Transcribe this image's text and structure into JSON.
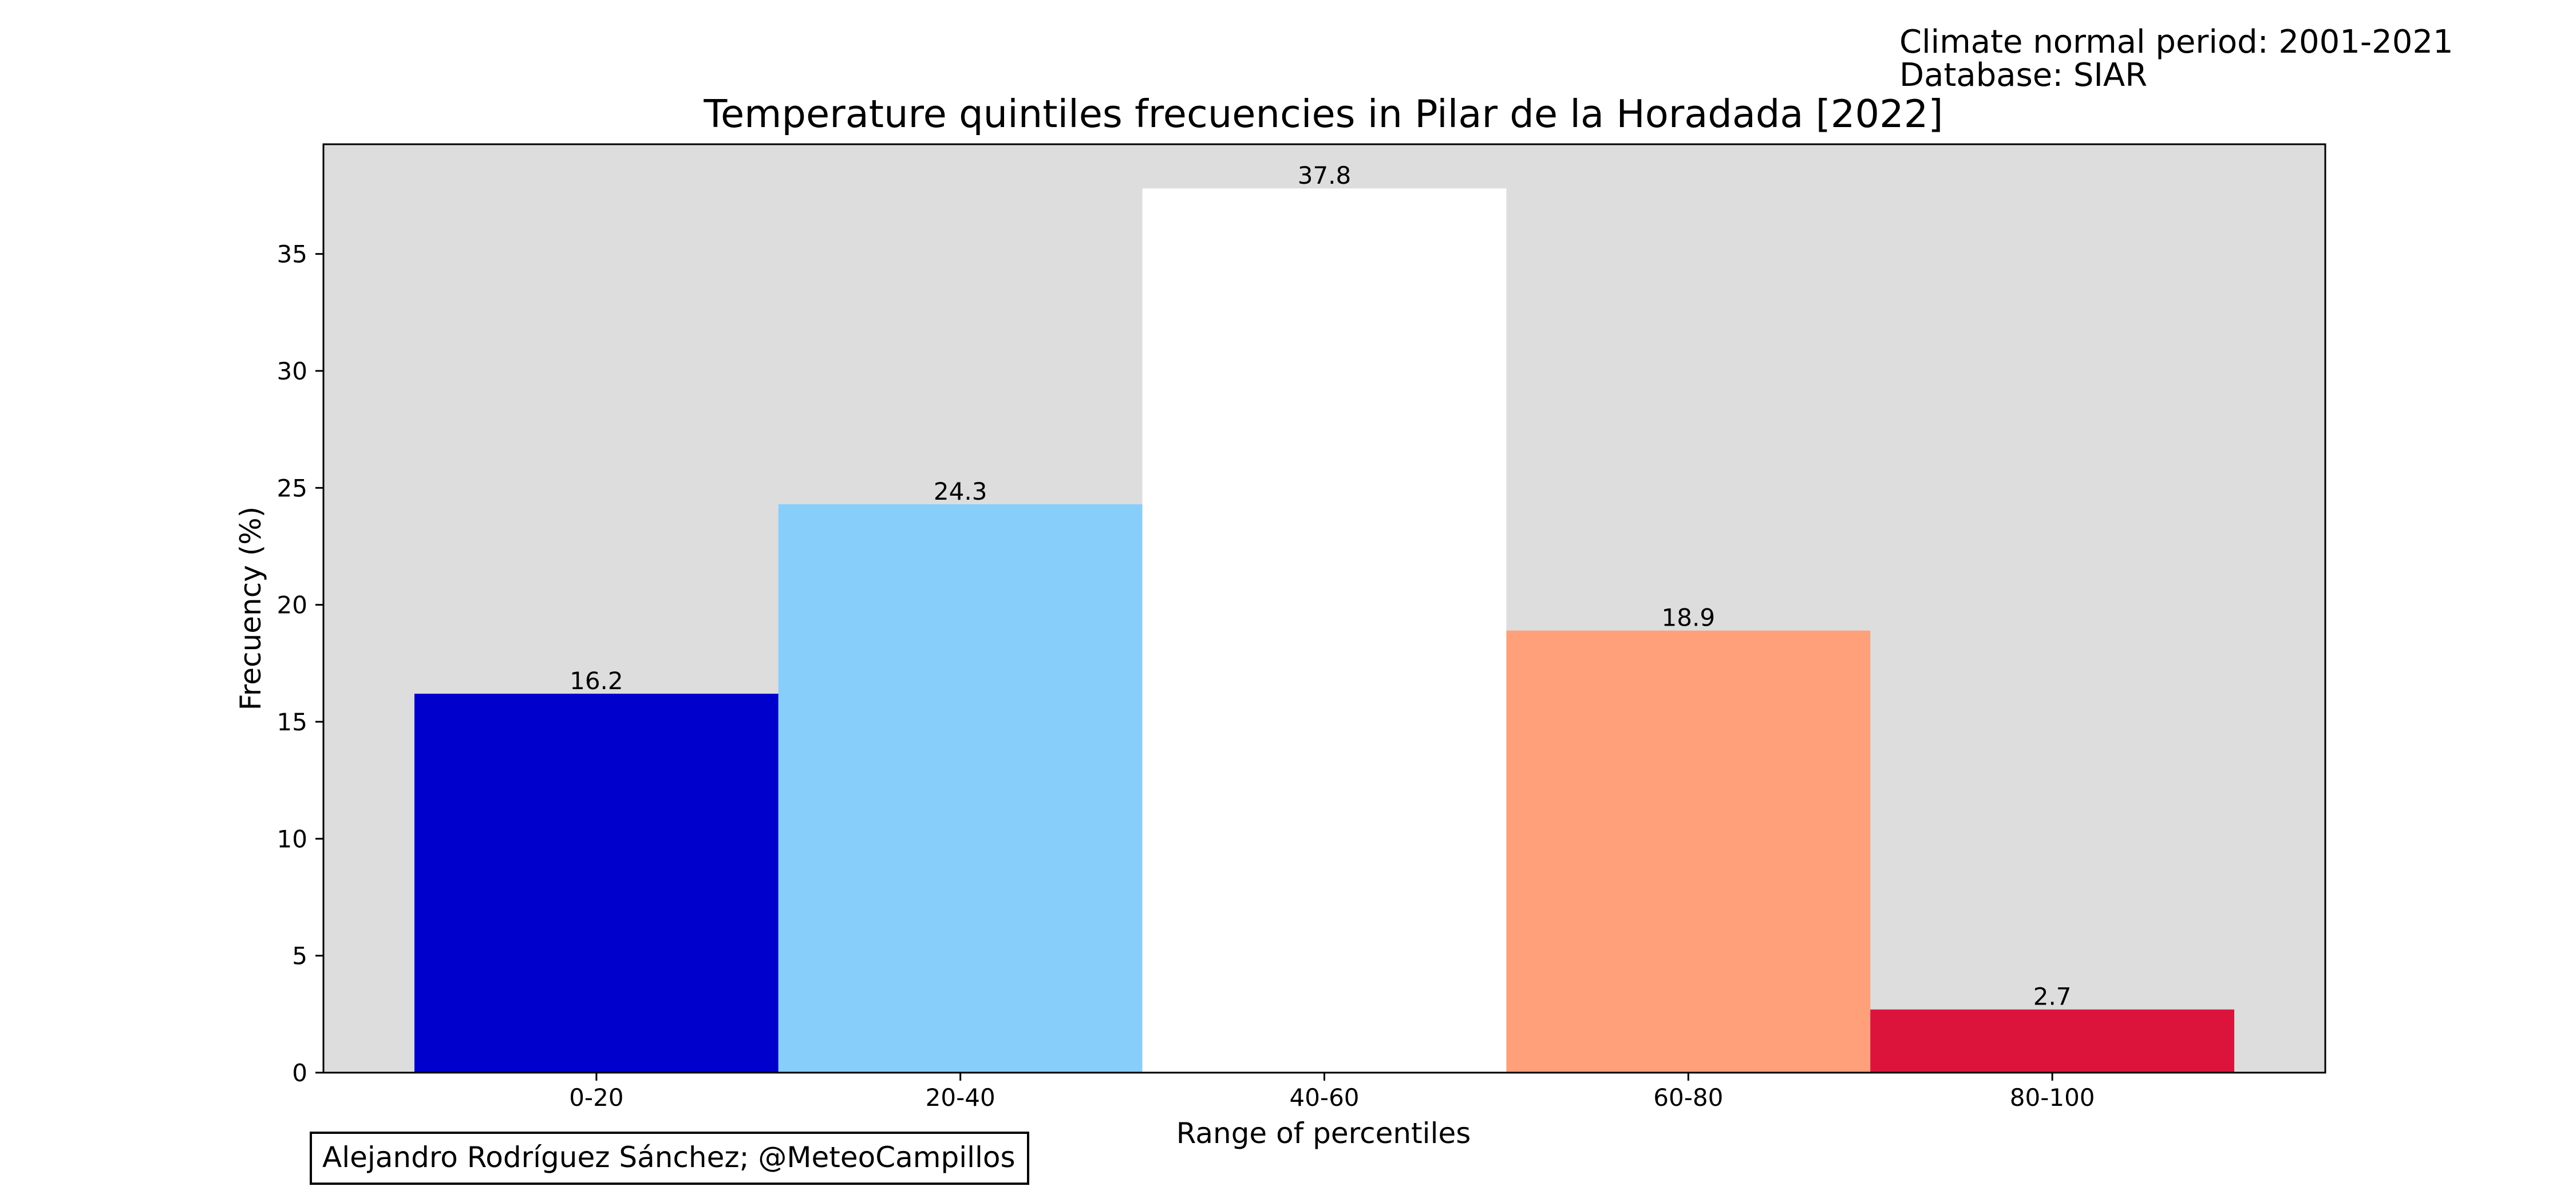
{
  "meta": {
    "climate_period": "Climate normal period: 2001-2021",
    "database": "Database: SIAR",
    "credit": "Alejandro Rodríguez Sánchez; @MeteoCampillos"
  },
  "chart_data": {
    "type": "bar",
    "title": "Temperature quintiles frecuencies in Pilar de la Horadada [2022]",
    "xlabel": "Range of percentiles",
    "ylabel": "Frecuency (%)",
    "categories": [
      "0-20",
      "20-40",
      "40-60",
      "60-80",
      "80-100"
    ],
    "values": [
      16.2,
      24.3,
      37.8,
      18.9,
      2.7
    ],
    "value_labels": [
      "16.2",
      "24.3",
      "37.8",
      "18.9",
      "2.7"
    ],
    "colors": [
      "#0000cd",
      "#87cefa",
      "#ffffff",
      "#ffa07a",
      "#dc143c"
    ],
    "ylim": [
      0,
      39.69
    ],
    "yticks": [
      0,
      5,
      10,
      15,
      20,
      25,
      30,
      35
    ],
    "plot_background": "#dddddd",
    "grid": false,
    "legend": "none"
  }
}
